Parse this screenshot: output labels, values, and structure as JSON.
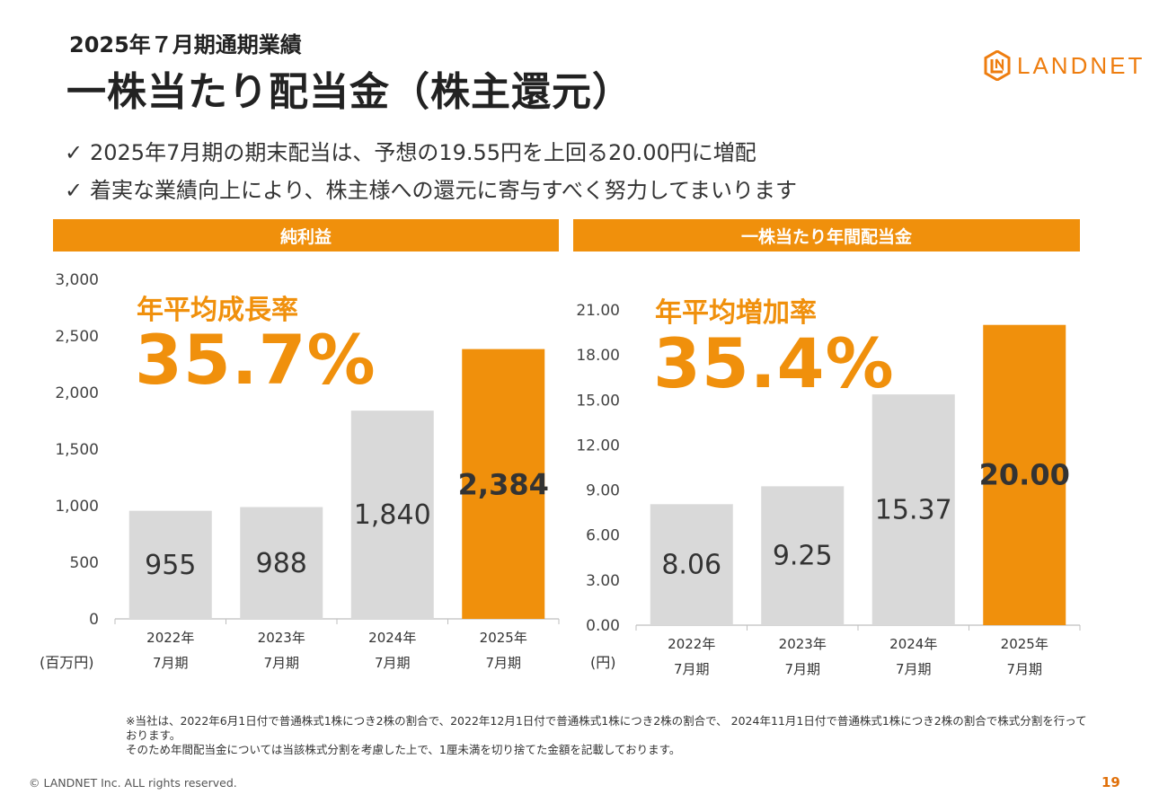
{
  "header": {
    "subtitle": "2025年７月期通期業績",
    "title": "一株当たり配当金（株主還元）"
  },
  "logo": {
    "text": "LANDNET",
    "color": "#ee7d0f"
  },
  "bullets": [
    {
      "icon": "check-icon",
      "text": "2025年7月期の期末配当は、予想の19.55円を上回る20.00円に増配"
    },
    {
      "icon": "check-icon",
      "text": "着実な業績向上により、株主様への還元に寄与すべく努力してまいります"
    }
  ],
  "colors": {
    "accent": "#f0900c",
    "bar_gray": "#d9d9d9",
    "text": "#333333"
  },
  "panels": {
    "left": {
      "heading": "純利益",
      "rate_label": "年平均成長率",
      "rate_value": "35.7%",
      "unit": "(百万円)"
    },
    "right": {
      "heading": "一株当たり年間配当金",
      "rate_label": "年平均増加率",
      "rate_value": "35.4%",
      "unit": "(円)"
    }
  },
  "chart_data": [
    {
      "type": "bar",
      "title": "純利益",
      "ylabel": "(百万円)",
      "categories": [
        "2022年\n7月期",
        "2023年\n7月期",
        "2024年\n7月期",
        "2025年\n7月期"
      ],
      "category_lines": [
        [
          "2022年",
          "7月期"
        ],
        [
          "2023年",
          "7月期"
        ],
        [
          "2024年",
          "7月期"
        ],
        [
          "2025年",
          "7月期"
        ]
      ],
      "values": [
        955,
        988,
        1840,
        2384
      ],
      "value_labels": [
        "955",
        "988",
        "1,840",
        "2,384"
      ],
      "highlight_index": 3,
      "ylim": [
        0,
        3000
      ],
      "yticks": [
        0,
        500,
        1000,
        1500,
        2000,
        2500,
        3000
      ],
      "ytick_labels": [
        "0",
        "500",
        "1,000",
        "1,500",
        "2,000",
        "2,500",
        "3,000"
      ],
      "grid": false,
      "annotation": {
        "label": "年平均成長率",
        "value": "35.7%"
      }
    },
    {
      "type": "bar",
      "title": "一株当たり年間配当金",
      "ylabel": "(円)",
      "categories": [
        "2022年\n7月期",
        "2023年\n7月期",
        "2024年\n7月期",
        "2025年\n7月期"
      ],
      "category_lines": [
        [
          "2022年",
          "7月期"
        ],
        [
          "2023年",
          "7月期"
        ],
        [
          "2024年",
          "7月期"
        ],
        [
          "2025年",
          "7月期"
        ]
      ],
      "values": [
        8.06,
        9.25,
        15.37,
        20.0
      ],
      "value_labels": [
        "8.06",
        "9.25",
        "15.37",
        "20.00"
      ],
      "highlight_index": 3,
      "ylim": [
        0,
        21
      ],
      "yticks": [
        0,
        3,
        6,
        9,
        12,
        15,
        18,
        21
      ],
      "ytick_labels": [
        "0.00",
        "3.00",
        "6.00",
        "9.00",
        "12.00",
        "15.00",
        "18.00",
        "21.00"
      ],
      "grid": false,
      "annotation": {
        "label": "年平均増加率",
        "value": "35.4%"
      }
    }
  ],
  "footnote": [
    "※当社は、2022年6月1日付で普通株式1株につき2株の割合で、2022年12月1日付で普通株式1株につき2株の割合で、 2024年11月1日付で普通株式1株につき2株の割合で株式分割を行っております。",
    "そのため年間配当金については当該株式分割を考慮した上で、1厘未満を切り捨てた金額を記載しております。"
  ],
  "footer": {
    "copyright": "© LANDNET Inc. ALL rights reserved.",
    "page": "19"
  }
}
